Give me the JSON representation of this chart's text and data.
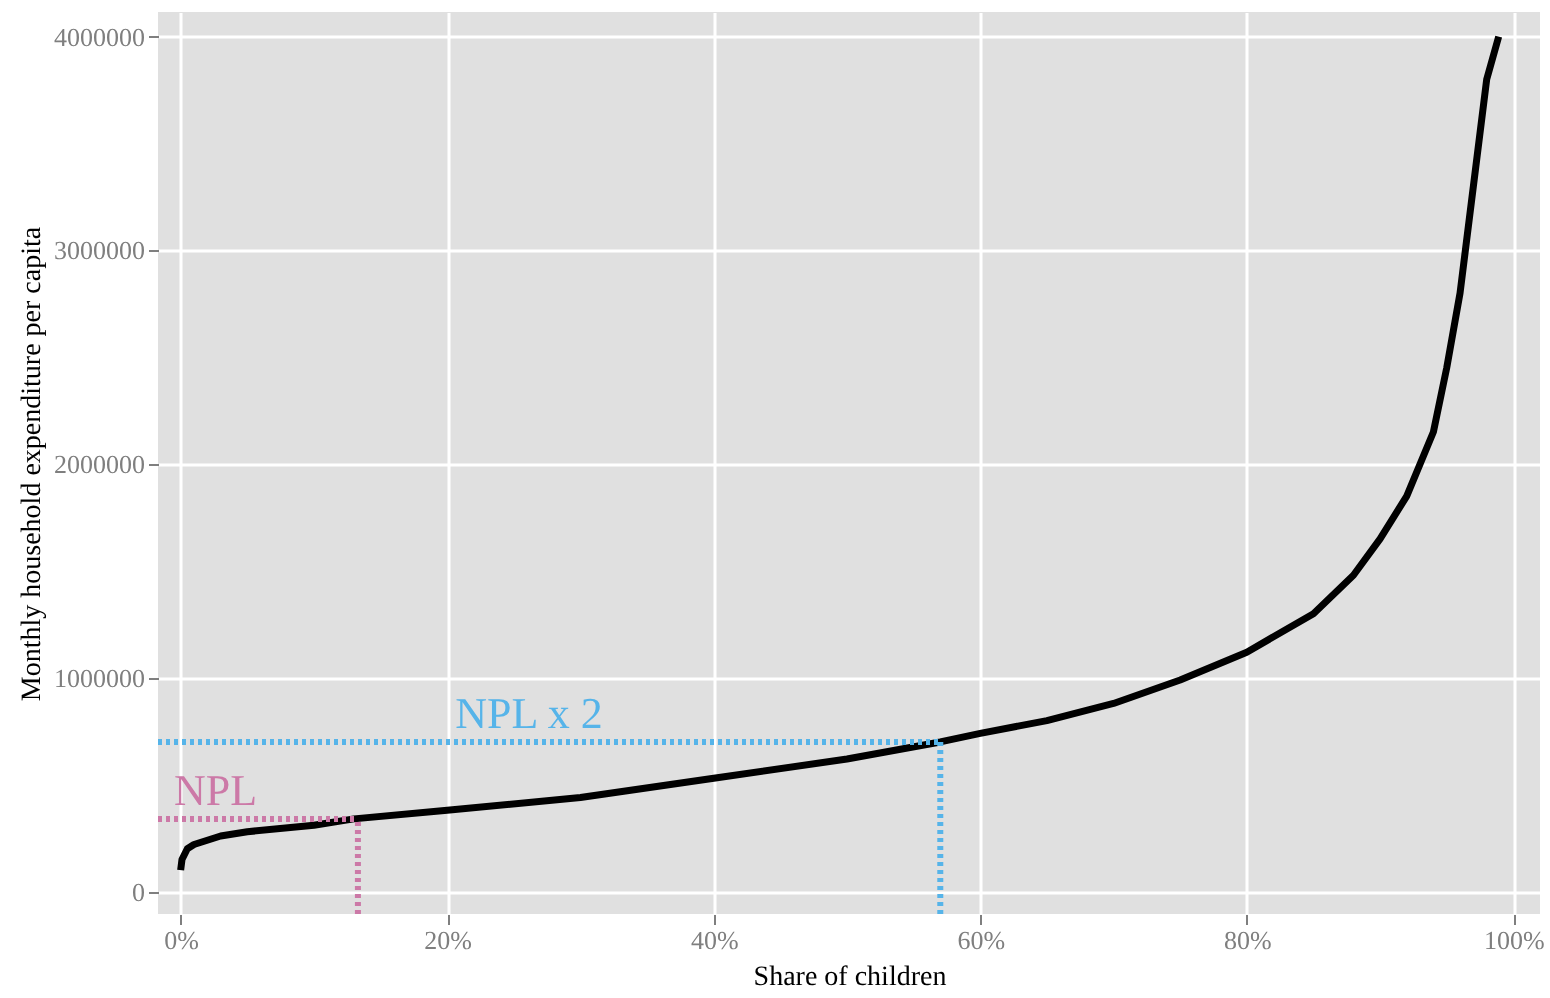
{
  "chart_data": {
    "type": "line",
    "xlabel": "Share of children",
    "ylabel": "Monthly household expenditure per capita",
    "x": [
      0,
      0.1,
      0.5,
      1,
      3,
      5,
      10,
      13,
      20,
      30,
      40,
      50,
      57,
      60,
      65,
      70,
      75,
      80,
      85,
      88,
      90,
      92,
      94,
      95,
      96,
      97,
      98,
      98.9
    ],
    "series": [
      {
        "color": "#000000",
        "values": [
          100000,
          150000,
          200000,
          220000,
          260000,
          280000,
          310000,
          340000,
          380000,
          440000,
          530000,
          620000,
          700000,
          740000,
          800000,
          880000,
          990000,
          1120000,
          1300000,
          1480000,
          1650000,
          1850000,
          2150000,
          2450000,
          2800000,
          3300000,
          3800000,
          4000000
        ]
      }
    ],
    "xlim": [
      -1.7,
      102
    ],
    "ylim": [
      -105000,
      4115000
    ],
    "xticks": [
      {
        "value": 0,
        "label": "0%"
      },
      {
        "value": 20,
        "label": "20%"
      },
      {
        "value": 40,
        "label": "40%"
      },
      {
        "value": 60,
        "label": "60%"
      },
      {
        "value": 80,
        "label": "80%"
      },
      {
        "value": 100,
        "label": "100%"
      }
    ],
    "yticks": [
      0,
      1000000,
      2000000,
      3000000,
      4000000
    ],
    "grid": true,
    "marker": "none",
    "line_style": "solid",
    "ref_lines": [
      {
        "axis": "y",
        "value": 340000,
        "label": "NPL",
        "color": "#cc79a7",
        "line_style": "dotted"
      },
      {
        "axis": "x",
        "value": 13.3,
        "label": null,
        "color": "#cc79a7",
        "line_style": "dotted"
      },
      {
        "axis": "y",
        "value": 700000,
        "label": "NPL x 2",
        "color": "#56b4e9",
        "line_style": "dotted"
      },
      {
        "axis": "x",
        "value": 57,
        "label": null,
        "color": "#56b4e9",
        "line_style": "dotted"
      }
    ]
  }
}
